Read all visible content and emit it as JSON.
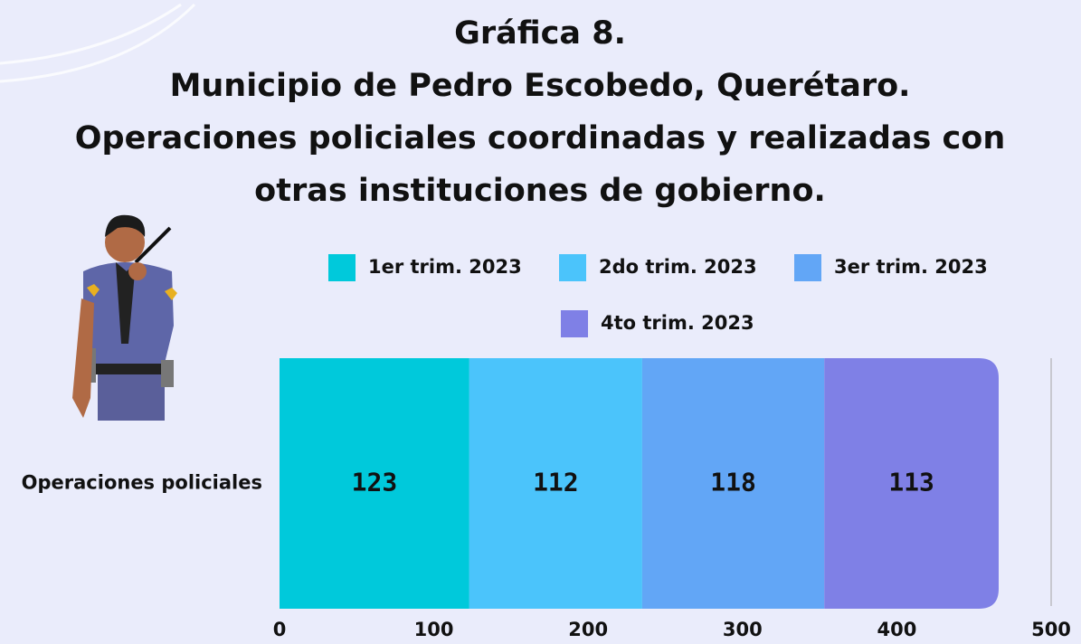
{
  "chart_data": {
    "type": "stacked-bar-horizontal",
    "title": [
      "Gráfica 8.",
      "Municipio de Pedro Escobedo, Querétaro.",
      "Operaciones policiales coordinadas y realizadas con",
      "otras instituciones de gobierno."
    ],
    "categories": [
      "Operaciones policiales"
    ],
    "series": [
      {
        "name": "1er trim. 2023",
        "color": "#00c9db",
        "values": [
          123
        ]
      },
      {
        "name": "2do trim. 2023",
        "color": "#4bc4fb",
        "values": [
          112
        ]
      },
      {
        "name": "3er trim. 2023",
        "color": "#62a6f6",
        "values": [
          118
        ]
      },
      {
        "name": "4to trim. 2023",
        "color": "#7f80e6",
        "values": [
          113
        ]
      }
    ],
    "xlim": [
      0,
      500
    ],
    "xticks": [
      0,
      100,
      200,
      300,
      400,
      500
    ]
  }
}
